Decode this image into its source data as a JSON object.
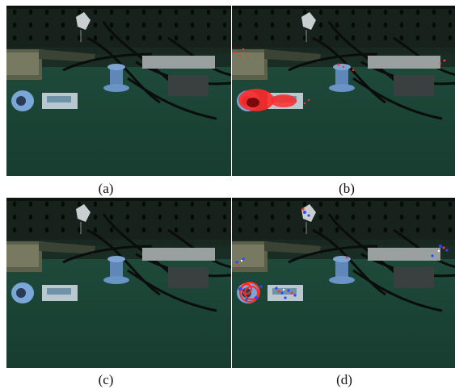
{
  "figure": {
    "panels": [
      {
        "id": "a",
        "label": "(a)",
        "overlay": "none"
      },
      {
        "id": "b",
        "label": "(b)",
        "overlay": "red-keypoints"
      },
      {
        "id": "c",
        "label": "(c)",
        "overlay": "none"
      },
      {
        "id": "d",
        "label": "(d)",
        "overlay": "red-blue-keypoints"
      }
    ],
    "colors": {
      "table": "#1f4a3c",
      "wall": "#17221d",
      "pegboard_hole": "#060a08",
      "spool": "#5f87b8",
      "tape": "#7aa6d8",
      "overlay_red": "#ff2a2a",
      "overlay_blue": "#2a46ff"
    }
  }
}
